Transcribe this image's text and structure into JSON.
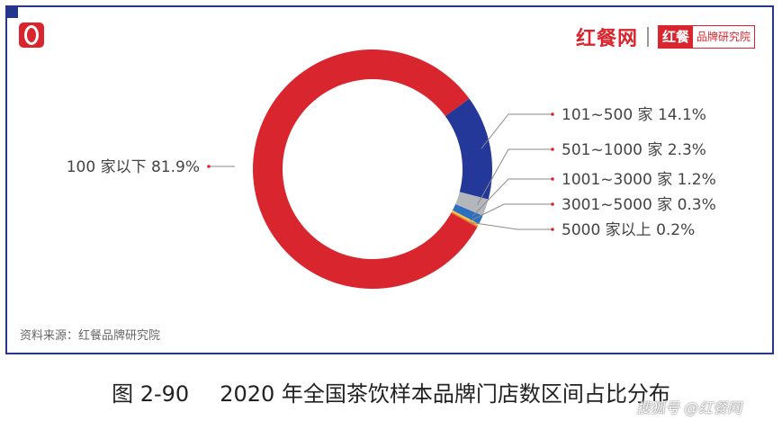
{
  "brand": {
    "name": "红餐网",
    "badge_mark": "红餐",
    "badge_text": "品牌研究院"
  },
  "source_note": "资料来源：红餐品牌研究院",
  "caption": {
    "number": "图 2-90",
    "title": "2020 年全国茶饮样本品牌门店数区间占比分布"
  },
  "watermark": "搜狐号 @红餐网",
  "chart_data": {
    "type": "pie",
    "style": "donut",
    "slices": [
      {
        "label": "100 家以下",
        "value": 81.9,
        "display": "100 家以下 81.9%",
        "color": "#d9262e"
      },
      {
        "label": "101~500 家",
        "value": 14.1,
        "display": "101~500 家 14.1%",
        "color": "#24389a"
      },
      {
        "label": "501~1000 家",
        "value": 2.3,
        "display": "501~1000 家 2.3%",
        "color": "#b3b6bb"
      },
      {
        "label": "1001~3000 家",
        "value": 1.2,
        "display": "1001~3000 家 1.2%",
        "color": "#2a6fc0"
      },
      {
        "label": "3001~5000 家",
        "value": 0.3,
        "display": "3001~5000 家 0.3%",
        "color": "#f4c542"
      },
      {
        "label": "5000 家以上",
        "value": 0.2,
        "display": "5000 家以上 0.2%",
        "color": "#e87a2a"
      }
    ]
  }
}
